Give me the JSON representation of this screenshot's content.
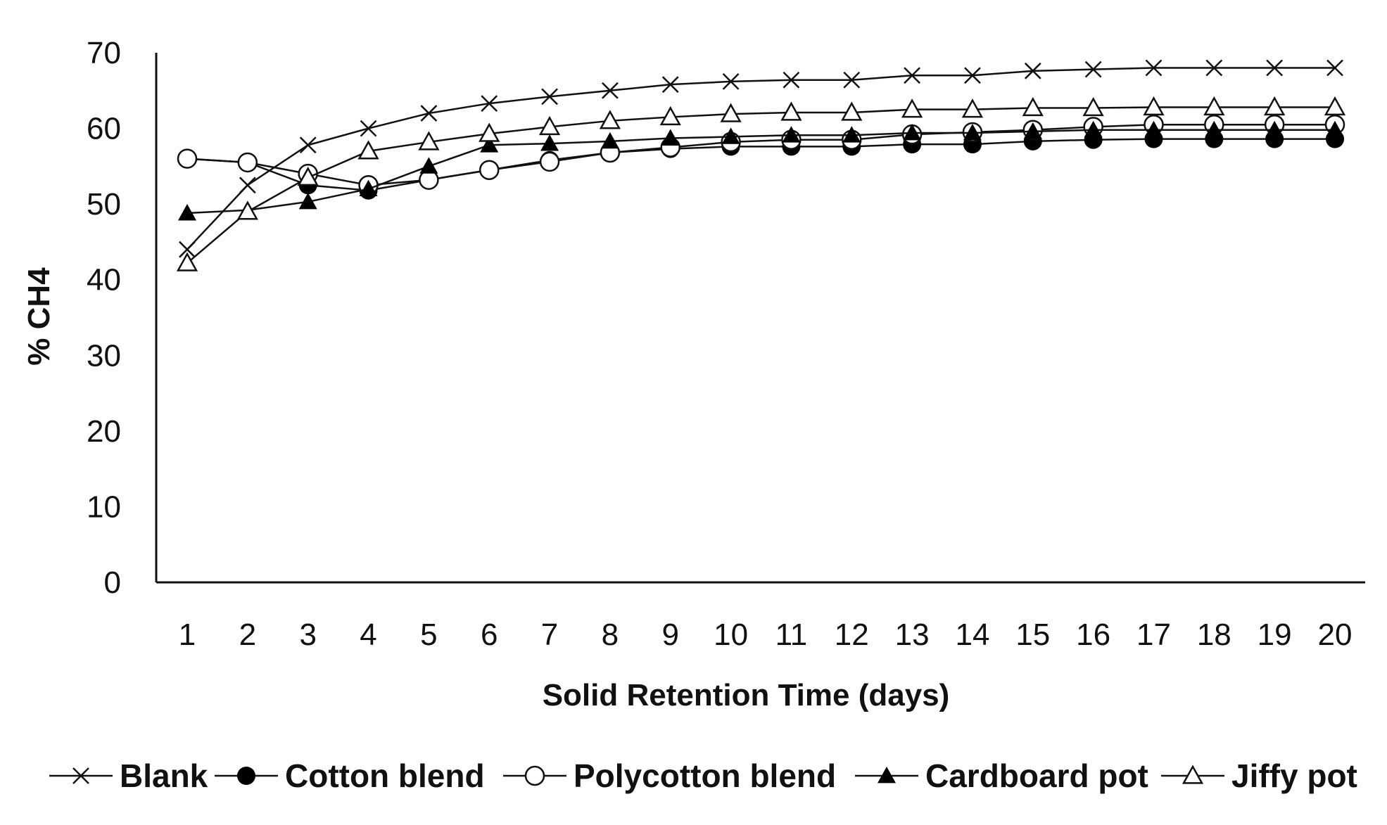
{
  "chart_data": {
    "type": "line",
    "title": "",
    "xlabel": "Solid Retention Time (days)",
    "ylabel": "% CH4",
    "x": [
      1,
      2,
      3,
      4,
      5,
      6,
      7,
      8,
      9,
      10,
      11,
      12,
      13,
      14,
      15,
      16,
      17,
      18,
      19,
      20
    ],
    "ylim": [
      0,
      70
    ],
    "yticks": [
      0,
      10,
      20,
      30,
      40,
      50,
      60,
      70
    ],
    "grid": false,
    "legend_position": "bottom",
    "series": [
      {
        "name": "Blank",
        "marker": "x",
        "values": [
          44,
          52.5,
          57.8,
          60,
          62,
          63.3,
          64.2,
          65,
          65.8,
          66.2,
          66.4,
          66.4,
          67,
          67,
          67.6,
          67.8,
          68,
          68,
          68,
          68
        ]
      },
      {
        "name": "Cotton blend",
        "marker": "filled-circle",
        "values": [
          56,
          55.5,
          52.5,
          51.8,
          53.2,
          54.5,
          55.8,
          56.8,
          57.3,
          57.6,
          57.6,
          57.6,
          57.9,
          57.9,
          58.3,
          58.5,
          58.6,
          58.6,
          58.6,
          58.6
        ]
      },
      {
        "name": "Polycotton blend",
        "marker": "open-circle",
        "values": [
          56,
          55.5,
          54,
          52.5,
          53.2,
          54.5,
          55.6,
          56.8,
          57.5,
          58.2,
          58.5,
          58.5,
          59.2,
          59.5,
          59.8,
          60.2,
          60.5,
          60.5,
          60.5,
          60.5
        ]
      },
      {
        "name": "Cardboard pot",
        "marker": "filled-triangle",
        "values": [
          48.8,
          49.2,
          50.3,
          52,
          55,
          57.8,
          58,
          58.3,
          58.7,
          58.9,
          59.1,
          59.1,
          59.4,
          59.4,
          59.6,
          59.8,
          59.8,
          59.8,
          59.8,
          59.8
        ]
      },
      {
        "name": "Jiffy pot",
        "marker": "open-triangle",
        "values": [
          42.2,
          49,
          53.5,
          57,
          58.2,
          59.3,
          60.2,
          61,
          61.5,
          61.9,
          62.1,
          62.1,
          62.5,
          62.5,
          62.7,
          62.7,
          62.8,
          62.8,
          62.8,
          62.8
        ]
      }
    ]
  }
}
